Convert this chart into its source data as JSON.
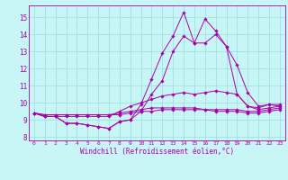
{
  "title": "",
  "xlabel": "Windchill (Refroidissement éolien,°C)",
  "ylabel": "",
  "xlim": [
    -0.5,
    23.5
  ],
  "ylim": [
    7.8,
    15.7
  ],
  "yticks": [
    8,
    9,
    10,
    11,
    12,
    13,
    14,
    15
  ],
  "xticks": [
    0,
    1,
    2,
    3,
    4,
    5,
    6,
    7,
    8,
    9,
    10,
    11,
    12,
    13,
    14,
    15,
    16,
    17,
    18,
    19,
    20,
    21,
    22,
    23
  ],
  "background_color": "#c8f5f5",
  "line_color": "#aa00aa",
  "grid_color": "#99dddd",
  "lines": [
    [
      9.4,
      9.2,
      9.2,
      8.8,
      8.8,
      8.7,
      8.6,
      8.5,
      8.9,
      9.0,
      9.9,
      11.4,
      12.9,
      13.9,
      15.3,
      13.5,
      14.9,
      14.2,
      13.3,
      12.2,
      10.6,
      9.8,
      9.9,
      9.9
    ],
    [
      9.4,
      9.2,
      9.2,
      8.8,
      8.8,
      8.7,
      8.6,
      8.5,
      8.9,
      9.0,
      9.5,
      10.5,
      11.3,
      13.0,
      13.9,
      13.5,
      13.5,
      14.0,
      13.3,
      10.5,
      9.8,
      9.7,
      9.9,
      9.8
    ],
    [
      9.4,
      9.2,
      9.2,
      9.2,
      9.2,
      9.2,
      9.2,
      9.2,
      9.5,
      9.8,
      10.0,
      10.2,
      10.4,
      10.5,
      10.6,
      10.5,
      10.6,
      10.7,
      10.6,
      10.5,
      9.8,
      9.6,
      9.7,
      9.8
    ],
    [
      9.4,
      9.3,
      9.3,
      9.3,
      9.3,
      9.3,
      9.3,
      9.3,
      9.4,
      9.5,
      9.6,
      9.7,
      9.7,
      9.7,
      9.7,
      9.7,
      9.6,
      9.6,
      9.6,
      9.6,
      9.5,
      9.5,
      9.6,
      9.7
    ],
    [
      9.4,
      9.3,
      9.3,
      9.3,
      9.3,
      9.3,
      9.3,
      9.3,
      9.3,
      9.4,
      9.5,
      9.5,
      9.6,
      9.6,
      9.6,
      9.6,
      9.6,
      9.5,
      9.5,
      9.5,
      9.4,
      9.4,
      9.5,
      9.6
    ]
  ]
}
